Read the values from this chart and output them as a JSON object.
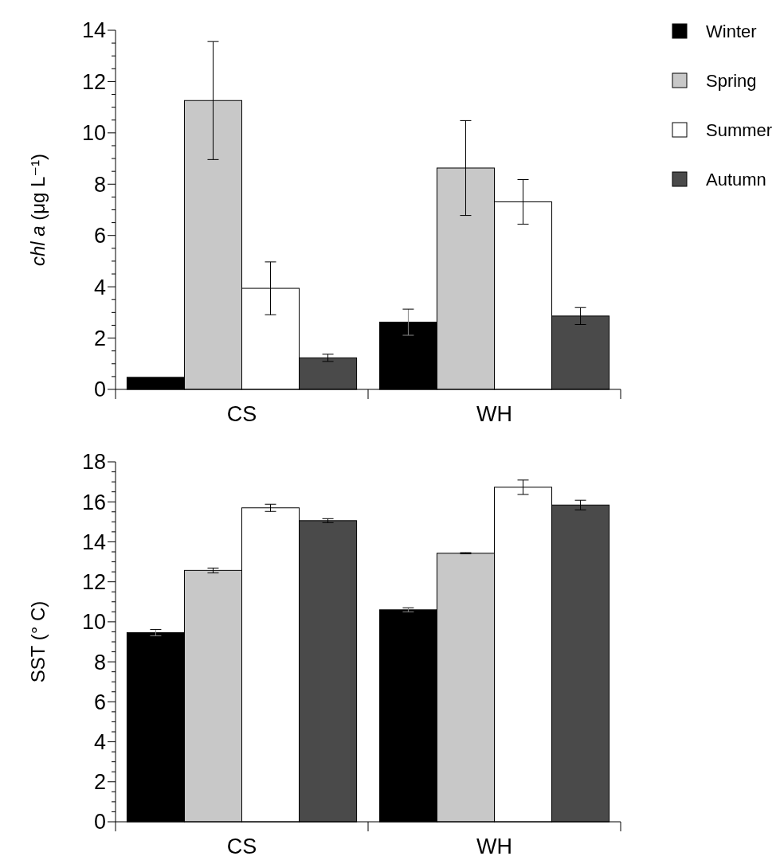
{
  "chart_data": [
    {
      "type": "bar",
      "categories": [
        "CS",
        "WH"
      ],
      "ylabel": "chl a (μg L⁻¹)",
      "ylim": [
        0,
        14
      ],
      "yticks": [
        0,
        {
          "value": 0.5,
          "label": null
        },
        {
          "value": 1,
          "label": null
        },
        {
          "value": 1.5,
          "label": null
        },
        2,
        {
          "value": 2.5,
          "label": null
        },
        {
          "value": 3,
          "label": null
        },
        {
          "value": 3.5,
          "label": null
        },
        4,
        {
          "value": 4.5,
          "label": null
        },
        {
          "value": 5,
          "label": null
        },
        {
          "value": 5.5,
          "label": null
        },
        6,
        {
          "value": 6.5,
          "label": null
        },
        {
          "value": 7,
          "label": null
        },
        {
          "value": 7.5,
          "label": null
        },
        8,
        {
          "value": 8.5,
          "label": null
        },
        {
          "value": 9,
          "label": null
        },
        {
          "value": 9.5,
          "label": null
        },
        10,
        {
          "value": 10.5,
          "label": null
        },
        {
          "value": 11,
          "label": null
        },
        {
          "value": 11.5,
          "label": null
        },
        12,
        {
          "value": 12.5,
          "label": null
        },
        {
          "value": 13,
          "label": null
        },
        {
          "value": 13.5,
          "label": null
        },
        14
      ],
      "legend": "top right",
      "grid": false,
      "series": [
        {
          "name": "Winter",
          "color": "#000000",
          "values": [
            0.47,
            2.62
          ],
          "errors": [
            null,
            0.51
          ]
        },
        {
          "name": "Spring",
          "color": "#c8c8c8",
          "values": [
            11.26,
            8.63
          ],
          "errors": [
            2.3,
            1.85
          ]
        },
        {
          "name": "Summer",
          "color": "#ffffff",
          "values": [
            3.94,
            7.31
          ],
          "errors": [
            1.03,
            0.87
          ]
        },
        {
          "name": "Autumn",
          "color": "#4a4a4a",
          "values": [
            1.23,
            2.86
          ],
          "errors": [
            0.14,
            0.33
          ]
        }
      ]
    },
    {
      "type": "bar",
      "categories": [
        "CS",
        "WH"
      ],
      "ylabel": "SST (° C)",
      "ylim": [
        0,
        18
      ],
      "yticks": [
        0,
        {
          "value": 0.5,
          "label": null
        },
        {
          "value": 1,
          "label": null
        },
        {
          "value": 1.5,
          "label": null
        },
        2,
        {
          "value": 2.5,
          "label": null
        },
        {
          "value": 3,
          "label": null
        },
        {
          "value": 3.5,
          "label": null
        },
        4,
        {
          "value": 4.5,
          "label": null
        },
        {
          "value": 5,
          "label": null
        },
        {
          "value": 5.5,
          "label": null
        },
        6,
        {
          "value": 6.5,
          "label": null
        },
        {
          "value": 7,
          "label": null
        },
        {
          "value": 7.5,
          "label": null
        },
        8,
        {
          "value": 8.5,
          "label": null
        },
        {
          "value": 9,
          "label": null
        },
        {
          "value": 9.5,
          "label": null
        },
        10,
        {
          "value": 10.5,
          "label": null
        },
        {
          "value": 11,
          "label": null
        },
        {
          "value": 11.5,
          "label": null
        },
        12,
        {
          "value": 12.5,
          "label": null
        },
        {
          "value": 13,
          "label": null
        },
        {
          "value": 13.5,
          "label": null
        },
        14,
        {
          "value": 14.5,
          "label": null
        },
        {
          "value": 15,
          "label": null
        },
        {
          "value": 15.5,
          "label": null
        },
        16,
        {
          "value": 16.5,
          "label": null
        },
        {
          "value": 17,
          "label": null
        },
        {
          "value": 17.5,
          "label": null
        },
        18
      ],
      "legend": false,
      "grid": false,
      "series": [
        {
          "color": "#000000",
          "values": [
            9.46,
            10.6
          ],
          "errors": [
            0.16,
            0.1
          ]
        },
        {
          "color": "#c8c8c8",
          "values": [
            12.57,
            13.43
          ],
          "errors": [
            0.12,
            0.03
          ]
        },
        {
          "color": "#ffffff",
          "values": [
            15.7,
            16.73
          ],
          "errors": [
            0.18,
            0.36
          ]
        },
        {
          "color": "#4a4a4a",
          "values": [
            15.06,
            15.84
          ],
          "errors": [
            0.1,
            0.24
          ]
        }
      ]
    }
  ]
}
